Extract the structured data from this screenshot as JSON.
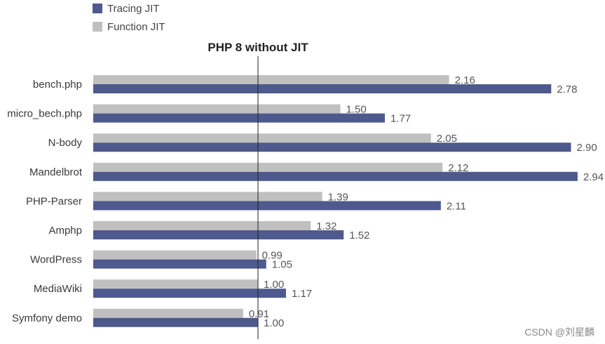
{
  "chart_data": {
    "type": "bar",
    "orientation": "horizontal",
    "categories": [
      "bench.php",
      "micro_bech.php",
      "N-body",
      "Mandelbrot",
      "PHP-Parser",
      "Amphp",
      "WordPress",
      "MediaWiki",
      "Symfony demo"
    ],
    "series": [
      {
        "name": "Function JIT",
        "color": "#c0c0c0",
        "values": [
          2.16,
          1.5,
          2.05,
          2.12,
          1.39,
          1.32,
          0.99,
          1.0,
          0.91
        ]
      },
      {
        "name": "Tracing JIT",
        "color": "#4e5a8d",
        "values": [
          2.78,
          1.77,
          2.9,
          2.94,
          2.11,
          1.52,
          1.05,
          1.17,
          1.0
        ]
      }
    ],
    "value_labels": {
      "Function JIT": [
        "2.16",
        "1.50",
        "2.05",
        "2.12",
        "1.39",
        "1.32",
        "0.99",
        "1.00",
        "0.91"
      ],
      "Tracing JIT": [
        "2.78",
        "1.77",
        "2.90",
        "2.94",
        "2.11",
        "1.52",
        "1.05",
        "1.17",
        "1.00"
      ]
    },
    "legend": {
      "placement": "top-left",
      "items": [
        {
          "label": "Tracing JIT",
          "color": "#4e5a8d"
        },
        {
          "label": "Function JIT",
          "color": "#c0c0c0"
        }
      ]
    },
    "reference_line": {
      "value": 1.0,
      "label": "PHP 8 without JIT"
    },
    "xlim": [
      0,
      3.0
    ],
    "grid": false
  },
  "watermark": "CSDN @刘星麟"
}
